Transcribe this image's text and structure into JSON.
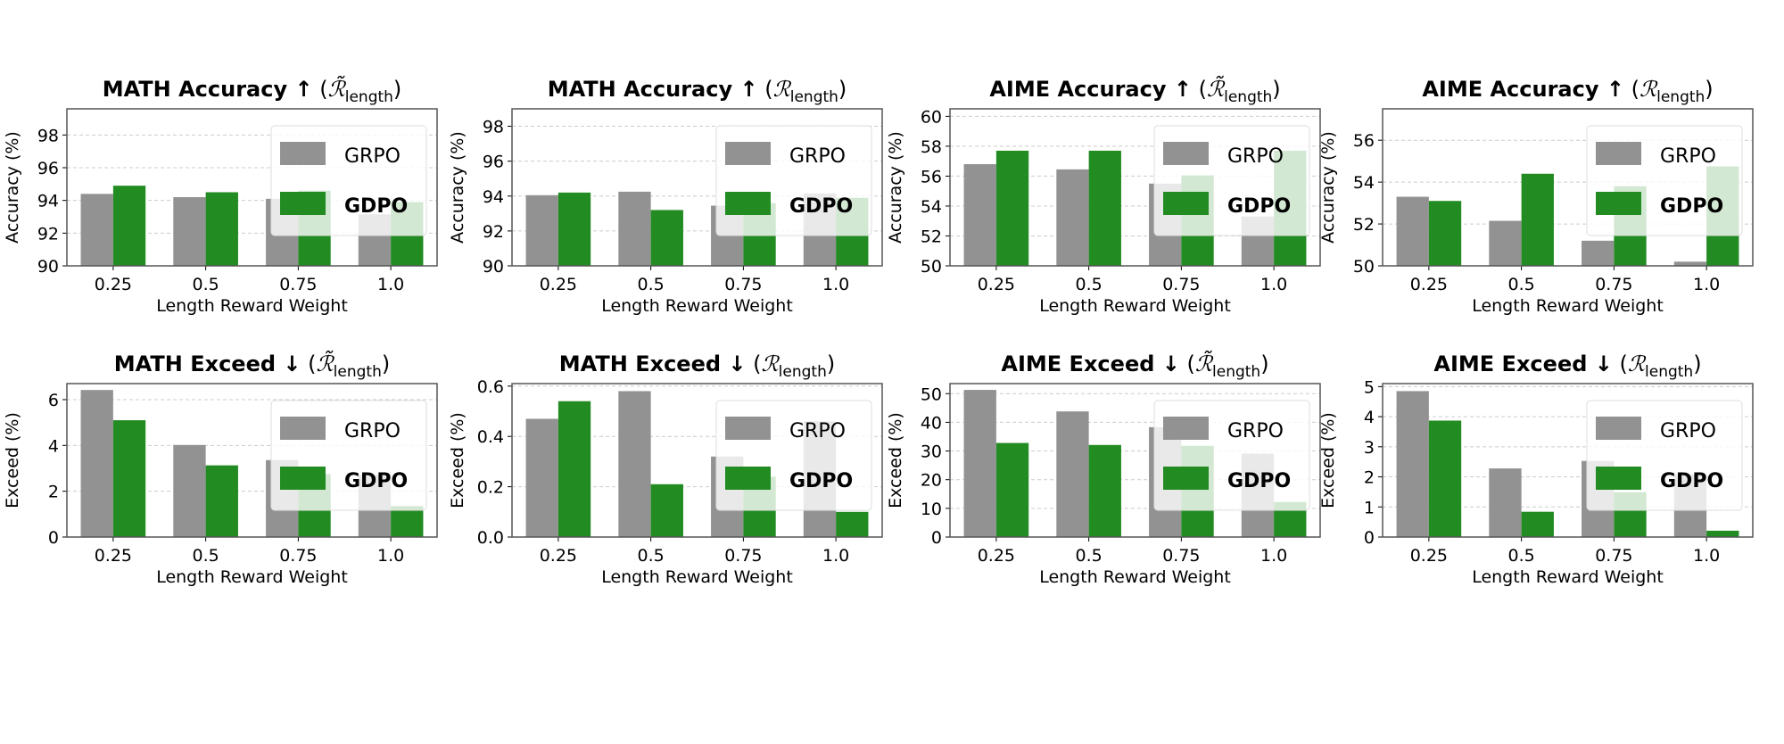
{
  "colors": {
    "GRPO": "#929292",
    "GDPO": "#228b22"
  },
  "legend": [
    "GRPO",
    "GDPO"
  ],
  "chart_data": [
    {
      "type": "bar",
      "title": "MATH Accuracy ↑",
      "reward": "ℛ̃",
      "reward_sub": "length",
      "xlabel": "Length Reward Weight",
      "ylabel": "Accuracy (%)",
      "categories": [
        "0.25",
        "0.5",
        "0.75",
        "1.0"
      ],
      "ylim": [
        90,
        99.6
      ],
      "yticks": [
        "90",
        "92",
        "94",
        "96",
        "98"
      ],
      "grid": true,
      "legend": "top-right",
      "series": [
        {
          "name": "GRPO",
          "values": [
            94.4,
            94.2,
            94.1,
            93.15
          ]
        },
        {
          "name": "GDPO",
          "values": [
            94.9,
            94.5,
            94.6,
            93.9
          ]
        }
      ]
    },
    {
      "type": "bar",
      "title": "MATH Accuracy ↑",
      "reward": "ℛ",
      "reward_sub": "length",
      "xlabel": "Length Reward Weight",
      "ylabel": "Accuracy (%)",
      "categories": [
        "0.25",
        "0.5",
        "0.75",
        "1.0"
      ],
      "ylim": [
        90,
        99
      ],
      "yticks": [
        "90",
        "92",
        "94",
        "96",
        "98"
      ],
      "grid": true,
      "legend": "top-right",
      "series": [
        {
          "name": "GRPO",
          "values": [
            94.05,
            94.25,
            93.45,
            94.15
          ]
        },
        {
          "name": "GDPO",
          "values": [
            94.2,
            93.2,
            93.6,
            93.9
          ]
        }
      ]
    },
    {
      "type": "bar",
      "title": "AIME Accuracy ↑",
      "reward": "ℛ̃",
      "reward_sub": "length",
      "xlabel": "Length Reward Weight",
      "ylabel": "Accuracy (%)",
      "categories": [
        "0.25",
        "0.5",
        "0.75",
        "1.0"
      ],
      "ylim": [
        50,
        60.5
      ],
      "yticks": [
        "50",
        "52",
        "54",
        "56",
        "58",
        "60"
      ],
      "grid": true,
      "legend": "top-right",
      "series": [
        {
          "name": "GRPO",
          "values": [
            56.8,
            56.45,
            55.5,
            53.3
          ]
        },
        {
          "name": "GDPO",
          "values": [
            57.7,
            57.7,
            56.05,
            57.7
          ]
        }
      ]
    },
    {
      "type": "bar",
      "title": "AIME Accuracy ↑",
      "reward": "ℛ",
      "reward_sub": "length",
      "xlabel": "Length Reward Weight",
      "ylabel": "Accuracy (%)",
      "categories": [
        "0.25",
        "0.5",
        "0.75",
        "1.0"
      ],
      "ylim": [
        50,
        57.5
      ],
      "yticks": [
        "50",
        "52",
        "54",
        "56"
      ],
      "grid": true,
      "legend": "top-right",
      "series": [
        {
          "name": "GRPO",
          "values": [
            53.3,
            52.15,
            51.2,
            50.2
          ]
        },
        {
          "name": "GDPO",
          "values": [
            53.1,
            54.4,
            53.8,
            54.75
          ]
        }
      ]
    },
    {
      "type": "bar",
      "title": "MATH Exceed ↓",
      "reward": "ℛ̃",
      "reward_sub": "length",
      "xlabel": "Length Reward Weight",
      "ylabel": "Exceed (%)",
      "categories": [
        "0.25",
        "0.5",
        "0.75",
        "1.0"
      ],
      "ylim": [
        0,
        6.7
      ],
      "yticks": [
        "0",
        "2",
        "4",
        "6"
      ],
      "grid": true,
      "legend": "top-right",
      "series": [
        {
          "name": "GRPO",
          "values": [
            6.42,
            4.02,
            3.36,
            2.7
          ]
        },
        {
          "name": "GDPO",
          "values": [
            5.1,
            3.13,
            2.75,
            1.35
          ]
        }
      ]
    },
    {
      "type": "bar",
      "title": "MATH Exceed ↓",
      "reward": "ℛ",
      "reward_sub": "length",
      "xlabel": "Length Reward Weight",
      "ylabel": "Exceed (%)",
      "categories": [
        "0.25",
        "0.5",
        "0.75",
        "1.0"
      ],
      "ylim": [
        0,
        0.61
      ],
      "yticks": [
        "0.0",
        "0.2",
        "0.4",
        "0.6"
      ],
      "grid": true,
      "legend": "top-right",
      "series": [
        {
          "name": "GRPO",
          "values": [
            0.47,
            0.58,
            0.32,
            0.46
          ]
        },
        {
          "name": "GDPO",
          "values": [
            0.54,
            0.21,
            0.24,
            0.1
          ]
        }
      ]
    },
    {
      "type": "bar",
      "title": "AIME Exceed ↓",
      "reward": "ℛ̃",
      "reward_sub": "length",
      "xlabel": "Length Reward Weight",
      "ylabel": "Exceed (%)",
      "categories": [
        "0.25",
        "0.5",
        "0.75",
        "1.0"
      ],
      "ylim": [
        0,
        53.5
      ],
      "yticks": [
        "0",
        "10",
        "20",
        "30",
        "40",
        "50"
      ],
      "grid": true,
      "legend": "top-right",
      "series": [
        {
          "name": "GRPO",
          "values": [
            51.3,
            43.8,
            38.3,
            29.1
          ]
        },
        {
          "name": "GDPO",
          "values": [
            32.8,
            32.1,
            31.8,
            12.2
          ]
        }
      ]
    },
    {
      "type": "bar",
      "title": "AIME Exceed ↓",
      "reward": "ℛ",
      "reward_sub": "length",
      "xlabel": "Length Reward Weight",
      "ylabel": "Exceed (%)",
      "categories": [
        "0.25",
        "0.5",
        "0.75",
        "1.0"
      ],
      "ylim": [
        0,
        5.1
      ],
      "yticks": [
        "0",
        "1",
        "2",
        "3",
        "4",
        "5"
      ],
      "grid": true,
      "legend": "top-right",
      "series": [
        {
          "name": "GRPO",
          "values": [
            4.85,
            2.28,
            2.53,
            2.08
          ]
        },
        {
          "name": "GDPO",
          "values": [
            3.87,
            0.84,
            1.49,
            0.21
          ]
        }
      ]
    }
  ]
}
